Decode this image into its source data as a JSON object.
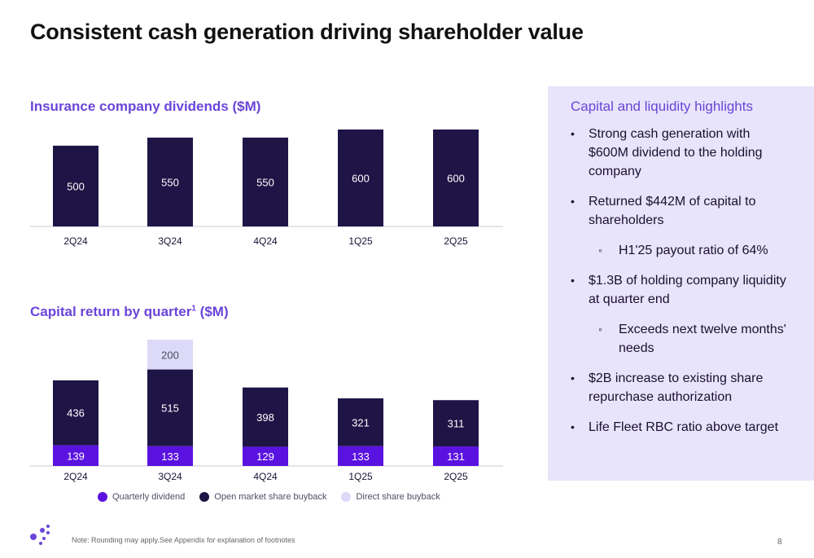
{
  "page": {
    "title": "Consistent cash generation driving shareholder value",
    "footnote": "Note: Rounding may apply.See Appendix for explanation of footnotes",
    "page_number": "8"
  },
  "colors": {
    "dividend_bar": "#1f1446",
    "quarterly_dividend": "#5a12e0",
    "open_market": "#1f1446",
    "direct_buyback": "#dcdaf6",
    "accent": "#6a45d8",
    "panel_bg": "#e8e4fb"
  },
  "highlights": {
    "title": "Capital and liquidity highlights",
    "items": [
      {
        "text": "Strong cash generation with $600M dividend to the holding company",
        "level": 1
      },
      {
        "text": "Returned $442M of capital to shareholders",
        "level": 1
      },
      {
        "text": "H1'25 payout ratio of 64%",
        "level": 2
      },
      {
        "text": "$1.3B of holding company liquidity at quarter end",
        "level": 1
      },
      {
        "text": "Exceeds next twelve months' needs",
        "level": 2
      },
      {
        "text": "$2B increase to existing share repurchase authorization",
        "level": 1
      },
      {
        "text": "Life Fleet RBC ratio above target",
        "level": 1
      }
    ]
  },
  "chart_data": [
    {
      "type": "bar",
      "title": "Insurance company dividends ($M)",
      "categories": [
        "2Q24",
        "3Q24",
        "4Q24",
        "1Q25",
        "2Q25"
      ],
      "values": [
        500,
        550,
        550,
        600,
        600
      ],
      "xlabel": "",
      "ylabel": "",
      "ylim": [
        0,
        600
      ],
      "grid": false,
      "legend": "none"
    },
    {
      "type": "bar",
      "stacked": true,
      "title": "Capital return by quarter",
      "title_superscript": "1",
      "title_suffix": " ($M)",
      "categories": [
        "2Q24",
        "3Q24",
        "4Q24",
        "1Q25",
        "2Q25"
      ],
      "series": [
        {
          "name": "Quarterly dividend",
          "values": [
            139,
            133,
            129,
            133,
            131
          ]
        },
        {
          "name": "Open market share buyback",
          "values": [
            436,
            515,
            398,
            321,
            311
          ]
        },
        {
          "name": "Direct share buyback",
          "values": [
            0,
            200,
            0,
            0,
            0
          ]
        }
      ],
      "xlabel": "",
      "ylabel": "",
      "ylim": [
        0,
        848
      ],
      "grid": false,
      "legend": "bottom"
    }
  ]
}
